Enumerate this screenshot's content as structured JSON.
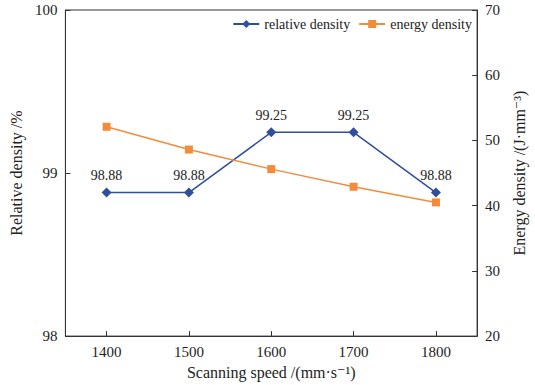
{
  "chart_data": {
    "type": "line",
    "x_label": "Scanning speed /(mm·s⁻¹)",
    "y_label": "Relative density /%",
    "y2_label": "Energy density /(J·mm⁻³)",
    "x": [
      1400,
      1500,
      1600,
      1700,
      1800
    ],
    "xlim": [
      1350,
      1850
    ],
    "xticks": [
      1400,
      1500,
      1600,
      1700,
      1800
    ],
    "ylim": [
      98,
      100
    ],
    "yticks": [
      98,
      99,
      100
    ],
    "y2lim": [
      20,
      70
    ],
    "y2ticks": [
      20,
      30,
      40,
      50,
      60,
      70
    ],
    "grid": false,
    "legend": "top-right",
    "series": [
      {
        "name": "relative density",
        "color": "#2f4e9e",
        "marker": "diamond",
        "line_style": "solid",
        "data_labels": true,
        "values": [
          98.88,
          98.88,
          99.25,
          99.25,
          98.88
        ]
      },
      {
        "name": "energy density",
        "color": "#f28c3a",
        "marker": "square",
        "line_style": "solid",
        "axis": "y2",
        "values": [
          52.1,
          48.6,
          45.6,
          42.9,
          40.5
        ]
      }
    ]
  }
}
